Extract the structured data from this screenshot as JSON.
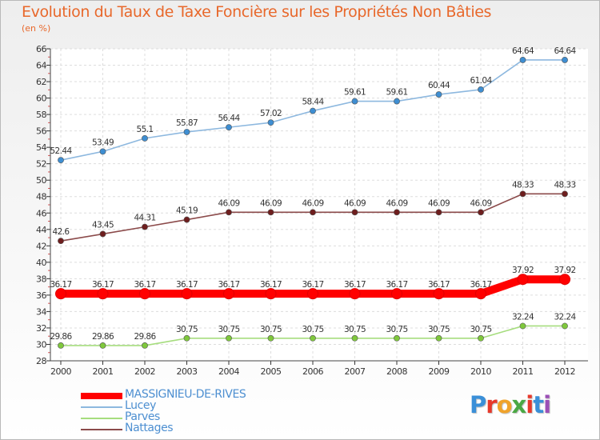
{
  "header": {
    "title": "Evolution du Taux de Taxe Foncière sur les Propriétés Non Bâties",
    "subtitle": "(en %)"
  },
  "logo": {
    "text": "Proxiti",
    "colors": [
      "#3a8fd8",
      "#e7392b",
      "#f0a32b",
      "#4aa844",
      "#e7392b",
      "#3a8fd8",
      "#9b4fb6"
    ]
  },
  "chart_data": {
    "type": "line",
    "title": "Evolution du Taux de Taxe Foncière sur les Propriétés Non Bâties",
    "ylabel": "(en %)",
    "xlabel": "",
    "ylim": [
      28,
      66
    ],
    "grid": true,
    "legend_position": "bottom-left",
    "y_ticks": [
      28,
      30,
      32,
      34,
      36,
      38,
      40,
      42,
      44,
      46,
      48,
      50,
      52,
      54,
      56,
      58,
      60,
      62,
      64,
      66
    ],
    "categories": [
      "2000",
      "2001",
      "2002",
      "2003",
      "2004",
      "2005",
      "2006",
      "2007",
      "2008",
      "2009",
      "2010",
      "2011",
      "2012"
    ],
    "series": [
      {
        "name": "MASSIGNIEU-DE-RIVES",
        "color": "#ff0000",
        "emphasis": true,
        "values": [
          36.17,
          36.17,
          36.17,
          36.17,
          36.17,
          36.17,
          36.17,
          36.17,
          36.17,
          36.17,
          36.17,
          37.92,
          37.92
        ],
        "labels": [
          "36.17",
          "36.17",
          "36.17",
          "36.17",
          "36.17",
          "36.17",
          "36.17",
          "36.17",
          "36.17",
          "36.17",
          "36.17",
          "37.92",
          "37.92"
        ]
      },
      {
        "name": "Lucey",
        "color": "#8db8df",
        "marker_color": "#3e8ed2",
        "values": [
          52.44,
          53.49,
          55.1,
          55.87,
          56.44,
          57.02,
          58.44,
          59.61,
          59.61,
          60.44,
          61.04,
          64.64,
          64.64
        ],
        "labels": [
          "52.44",
          "53.49",
          "55.1",
          "55.87",
          "56.44",
          "57.02",
          "58.44",
          "59.61",
          "59.61",
          "60.44",
          "61.04",
          "64.64",
          "64.64"
        ]
      },
      {
        "name": "Parves",
        "color": "#a6dd7e",
        "marker_color": "#7fc83c",
        "values": [
          29.86,
          29.86,
          29.86,
          30.75,
          30.75,
          30.75,
          30.75,
          30.75,
          30.75,
          30.75,
          30.75,
          32.24,
          32.24
        ],
        "labels": [
          "29.86",
          "29.86",
          "29.86",
          "30.75",
          "30.75",
          "30.75",
          "30.75",
          "30.75",
          "30.75",
          "30.75",
          "30.75",
          "32.24",
          "32.24"
        ]
      },
      {
        "name": "Nattages",
        "color": "#8b4a4a",
        "marker_color": "#6e1e1e",
        "values": [
          42.6,
          43.45,
          44.31,
          45.19,
          46.09,
          46.09,
          46.09,
          46.09,
          46.09,
          46.09,
          46.09,
          48.33,
          48.33
        ],
        "labels": [
          "42.6",
          "43.45",
          "44.31",
          "45.19",
          "46.09",
          "46.09",
          "46.09",
          "46.09",
          "46.09",
          "46.09",
          "46.09",
          "48.33",
          "48.33"
        ]
      }
    ]
  }
}
